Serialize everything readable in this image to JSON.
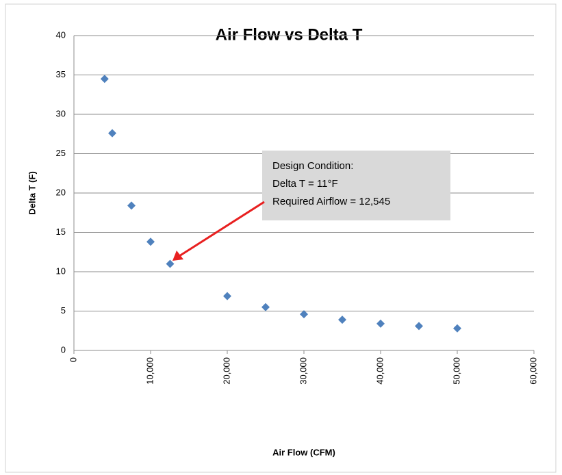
{
  "chart_data": {
    "type": "scatter",
    "title": "Air Flow vs Delta T",
    "x_label": "Air Flow (CFM)",
    "y_label": "Delta T (F)",
    "series": [
      {
        "color": "#4f81bd",
        "x": [
          4000,
          5000,
          7500,
          10000,
          12545,
          20000,
          25000,
          30000,
          35000,
          40000,
          45000,
          50000
        ],
        "values": [
          34.5,
          27.6,
          18.4,
          13.8,
          11,
          6.9,
          5.5,
          4.6,
          3.9,
          3.4,
          3.1,
          2.8
        ]
      }
    ],
    "xlim": [
      0,
      60000
    ],
    "xticks": [
      0,
      {
        "value": 10000,
        "label": "10,000"
      },
      {
        "value": 20000,
        "label": "20,000"
      },
      {
        "value": 30000,
        "label": "30,000"
      },
      {
        "value": 40000,
        "label": "40,000"
      },
      {
        "value": 50000,
        "label": "50,000"
      },
      {
        "value": 60000,
        "label": "60,000"
      }
    ],
    "ylim": [
      0,
      40
    ],
    "yticks": [
      0,
      5,
      10,
      15,
      20,
      25,
      30,
      35,
      40
    ],
    "grid": true,
    "annotation": {
      "lines": [
        "Design Condition:",
        "Delta T = 11°F",
        "Required Airflow = 12,545"
      ],
      "color": "#e82020"
    }
  }
}
